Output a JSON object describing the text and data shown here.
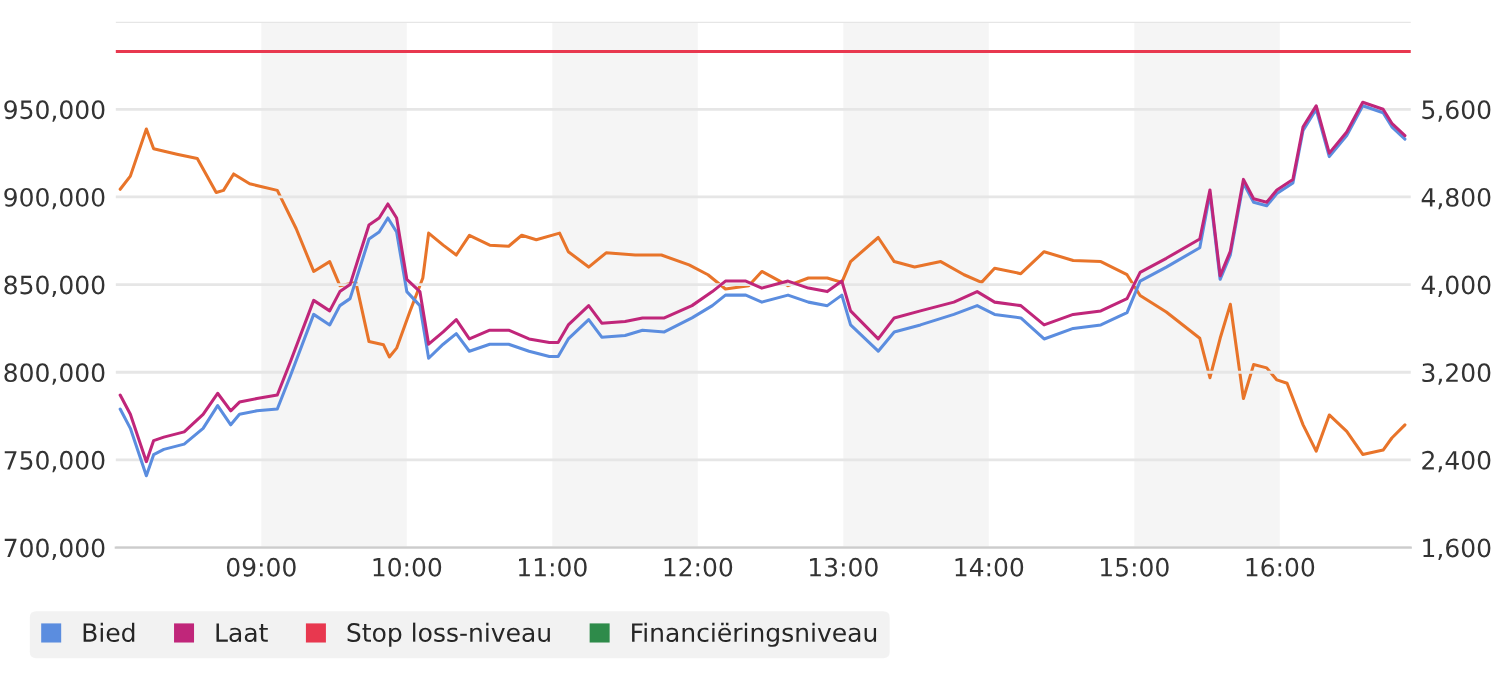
{
  "chart_data": {
    "type": "line",
    "xlim": [
      8.0,
      16.9
    ],
    "xticks": [
      {
        "value": 9,
        "label": "09:00"
      },
      {
        "value": 10,
        "label": "10:00"
      },
      {
        "value": 11,
        "label": "11:00"
      },
      {
        "value": 12,
        "label": "12:00"
      },
      {
        "value": 13,
        "label": "13:00"
      },
      {
        "value": 14,
        "label": "14:00"
      },
      {
        "value": 15,
        "label": "15:00"
      },
      {
        "value": 16,
        "label": "16:00"
      }
    ],
    "ylim": [
      700000,
      1000000
    ],
    "yticks": [
      {
        "value": 700000,
        "label": "700,000"
      },
      {
        "value": 750000,
        "label": "750,000"
      },
      {
        "value": 800000,
        "label": "800,000"
      },
      {
        "value": 850000,
        "label": "850,000"
      },
      {
        "value": 900000,
        "label": "900,000"
      },
      {
        "value": 950000,
        "label": "950,000"
      },
      {
        "value": 1000000,
        "label": null
      }
    ],
    "y2lim": [
      1600,
      6400
    ],
    "y2ticks": [
      {
        "value": 1600,
        "label": "1,600"
      },
      {
        "value": 2400,
        "label": "2,400"
      },
      {
        "value": 3200,
        "label": "3,200"
      },
      {
        "value": 4000,
        "label": "4,000"
      },
      {
        "value": 4800,
        "label": "4,800"
      },
      {
        "value": 5600,
        "label": "5,600"
      },
      {
        "value": 6400,
        "label": null
      }
    ],
    "grid": "y",
    "legend": "bottom",
    "bands": [
      {
        "axis": "x",
        "from": 9,
        "to": 10,
        "color": "#f5f5f5"
      },
      {
        "axis": "x",
        "from": 11,
        "to": 12,
        "color": "#f5f5f5"
      },
      {
        "axis": "x",
        "from": 13,
        "to": 14,
        "color": "#f5f5f5"
      },
      {
        "axis": "x",
        "from": 15,
        "to": 16,
        "color": "#f5f5f5"
      }
    ],
    "series": [
      {
        "name": "Bied",
        "color": "#5b8ddf",
        "x": [
          8.03,
          8.1,
          8.21,
          8.26,
          8.33,
          8.47,
          8.6,
          8.7,
          8.79,
          8.85,
          8.97,
          9.11,
          9.2,
          9.36,
          9.47,
          9.54,
          9.61,
          9.74,
          9.81,
          9.87,
          9.93,
          10.0,
          10.09,
          10.15,
          10.25,
          10.34,
          10.43,
          10.57,
          10.7,
          10.84,
          10.98,
          11.04,
          11.11,
          11.25,
          11.34,
          11.5,
          11.62,
          11.77,
          11.96,
          12.1,
          12.19,
          12.33,
          12.44,
          12.62,
          12.76,
          12.89,
          12.99,
          13.05,
          13.24,
          13.35,
          13.53,
          13.76,
          13.92,
          14.04,
          14.22,
          14.38,
          14.58,
          14.77,
          14.95,
          15.04,
          15.22,
          15.45,
          15.52,
          15.59,
          15.66,
          15.75,
          15.82,
          15.91,
          15.98,
          16.09,
          16.16,
          16.25,
          16.34,
          16.46,
          16.57,
          16.71,
          16.77,
          16.86
        ],
        "values": [
          779000,
          768000,
          741000,
          753000,
          756000,
          759000,
          768000,
          781000,
          770000,
          776000,
          778000,
          779000,
          798000,
          833000,
          827000,
          838000,
          842000,
          876000,
          880000,
          888000,
          880000,
          846000,
          838000,
          808000,
          816000,
          822000,
          812000,
          816000,
          816000,
          812000,
          809000,
          809000,
          819000,
          830000,
          820000,
          821000,
          824000,
          823000,
          831000,
          838000,
          844000,
          844000,
          840000,
          844000,
          840000,
          838000,
          844000,
          827000,
          812000,
          823000,
          827000,
          833000,
          838000,
          833000,
          831000,
          819000,
          825000,
          827000,
          834000,
          852000,
          860000,
          871000,
          902000,
          853000,
          867000,
          908000,
          897000,
          895000,
          902000,
          908000,
          938000,
          950000,
          923000,
          935000,
          952000,
          948000,
          940000,
          933000
        ]
      },
      {
        "name": "Laat",
        "color": "#c0267a",
        "x": [
          8.03,
          8.1,
          8.21,
          8.26,
          8.33,
          8.47,
          8.6,
          8.7,
          8.79,
          8.85,
          8.97,
          9.11,
          9.2,
          9.36,
          9.47,
          9.54,
          9.61,
          9.74,
          9.81,
          9.87,
          9.93,
          10.0,
          10.09,
          10.15,
          10.25,
          10.34,
          10.43,
          10.57,
          10.7,
          10.84,
          10.98,
          11.04,
          11.11,
          11.25,
          11.34,
          11.5,
          11.62,
          11.77,
          11.96,
          12.1,
          12.19,
          12.33,
          12.44,
          12.62,
          12.76,
          12.89,
          12.99,
          13.05,
          13.24,
          13.35,
          13.53,
          13.76,
          13.92,
          14.04,
          14.22,
          14.38,
          14.58,
          14.77,
          14.95,
          15.04,
          15.22,
          15.45,
          15.52,
          15.59,
          15.66,
          15.75,
          15.82,
          15.91,
          15.98,
          16.09,
          16.16,
          16.25,
          16.34,
          16.46,
          16.57,
          16.71,
          16.77,
          16.86
        ],
        "values": [
          787000,
          776000,
          749000,
          761000,
          763000,
          766000,
          776000,
          788000,
          778000,
          783000,
          785000,
          787000,
          806000,
          841000,
          835000,
          846000,
          850000,
          884000,
          888000,
          896000,
          888000,
          853000,
          846000,
          816000,
          823000,
          830000,
          819000,
          824000,
          824000,
          819000,
          817000,
          817000,
          827000,
          838000,
          828000,
          829000,
          831000,
          831000,
          838000,
          846000,
          852000,
          852000,
          848000,
          852000,
          848000,
          846000,
          852000,
          835000,
          819000,
          831000,
          835000,
          840000,
          846000,
          840000,
          838000,
          827000,
          833000,
          835000,
          842000,
          857000,
          865000,
          876000,
          904000,
          855000,
          869000,
          910000,
          899000,
          897000,
          904000,
          910000,
          940000,
          952000,
          925000,
          937000,
          954000,
          950000,
          942000,
          935000
        ]
      },
      {
        "color": "#e8742a",
        "axis": "y2",
        "x": [
          8.03,
          8.1,
          8.21,
          8.26,
          8.42,
          8.56,
          8.69,
          8.74,
          8.81,
          8.92,
          9.11,
          9.24,
          9.36,
          9.47,
          9.54,
          9.65,
          9.74,
          9.84,
          9.88,
          9.93,
          10.02,
          10.11,
          10.15,
          10.25,
          10.34,
          10.43,
          10.57,
          10.7,
          10.79,
          10.89,
          11.05,
          11.11,
          11.25,
          11.37,
          11.57,
          11.75,
          11.94,
          12.07,
          12.19,
          12.35,
          12.44,
          12.62,
          12.76,
          12.89,
          12.99,
          13.05,
          13.24,
          13.35,
          13.49,
          13.67,
          13.83,
          13.95,
          14.04,
          14.22,
          14.38,
          14.58,
          14.77,
          14.95,
          15.04,
          15.22,
          15.45,
          15.52,
          15.59,
          15.66,
          15.75,
          15.82,
          15.91,
          15.98,
          16.05,
          16.16,
          16.25,
          16.34,
          16.46,
          16.57,
          16.71,
          16.77,
          16.86
        ],
        "values": [
          4870,
          4990,
          5420,
          5240,
          5190,
          5150,
          4840,
          4860,
          5010,
          4920,
          4860,
          4510,
          4120,
          4210,
          3990,
          4020,
          3480,
          3450,
          3340,
          3420,
          3750,
          4060,
          4470,
          4360,
          4270,
          4450,
          4360,
          4350,
          4450,
          4410,
          4470,
          4300,
          4160,
          4290,
          4270,
          4270,
          4180,
          4090,
          3960,
          3990,
          4120,
          3990,
          4060,
          4060,
          4020,
          4210,
          4430,
          4210,
          4160,
          4210,
          4090,
          4020,
          4150,
          4100,
          4300,
          4220,
          4210,
          4090,
          3900,
          3750,
          3510,
          3150,
          3510,
          3820,
          2960,
          3270,
          3240,
          3130,
          3100,
          2720,
          2480,
          2810,
          2660,
          2450,
          2490,
          2600,
          2720
        ]
      },
      {
        "name": "Stop loss-niveau",
        "color": "#e8384f",
        "x": [
          8.0,
          16.9
        ],
        "values": [
          983000,
          983000
        ]
      },
      {
        "name": "Financiëringsniveau",
        "color": "#2e8b4a"
      }
    ]
  }
}
